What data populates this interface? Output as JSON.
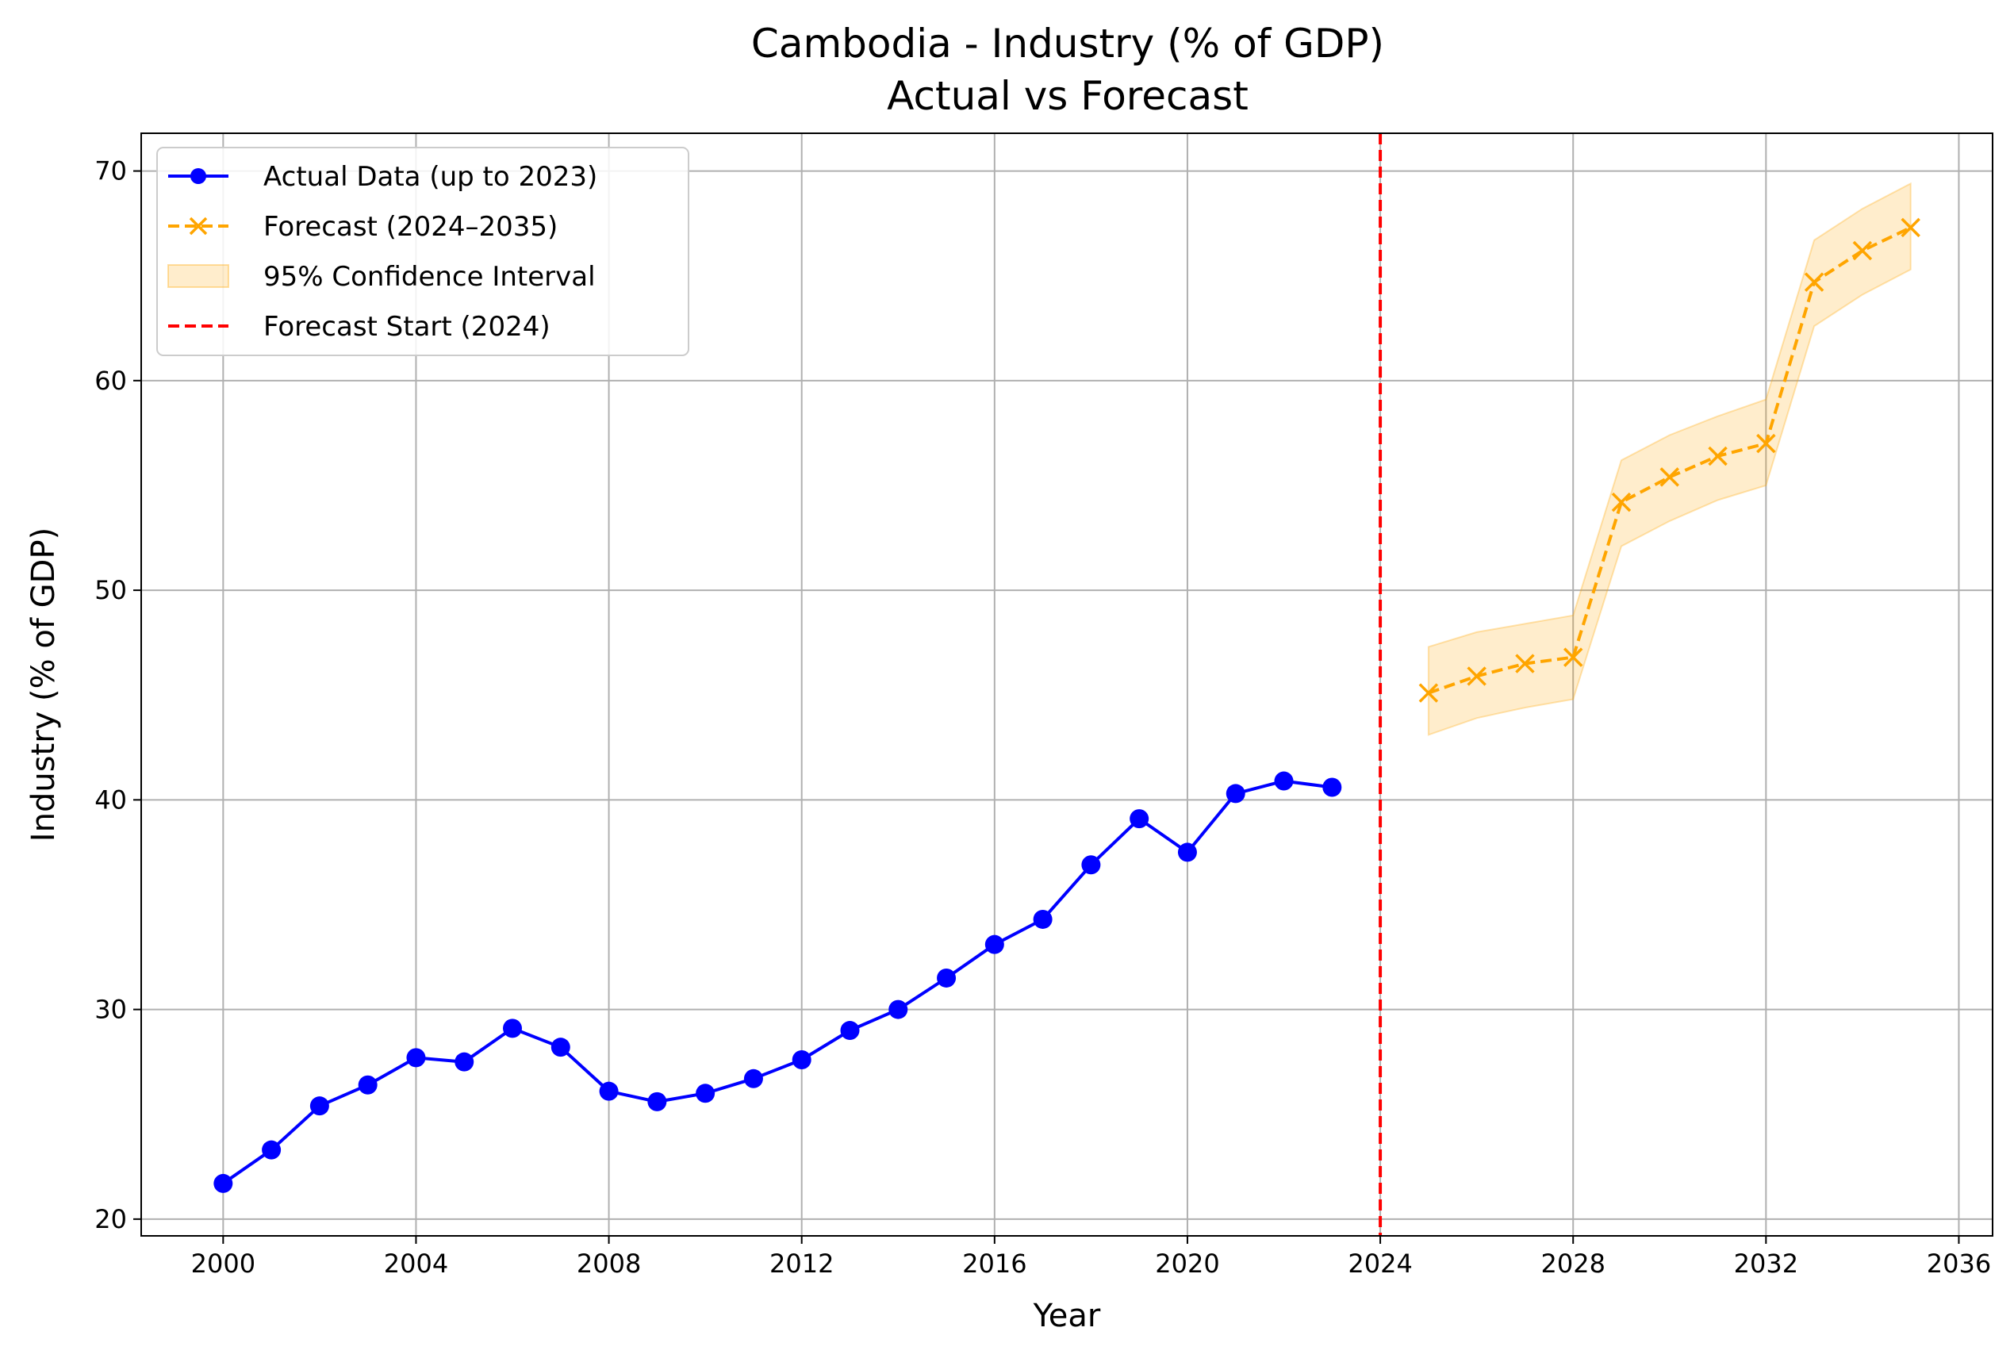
{
  "chart_data": {
    "type": "line",
    "title": "Cambodia - Industry (% of GDP)",
    "subtitle": "Actual vs Forecast",
    "xlabel": "Year",
    "ylabel": "Industry (% of GDP)",
    "xlim": [
      1998.3,
      2036.7
    ],
    "ylim": [
      19.2,
      71.8
    ],
    "xticks": [
      2000,
      2004,
      2008,
      2012,
      2016,
      2020,
      2024,
      2028,
      2032,
      2036
    ],
    "yticks": [
      20,
      30,
      40,
      50,
      60,
      70
    ],
    "grid": true,
    "legend_position": "upper-left",
    "forecast_start": 2024,
    "series": [
      {
        "name": "Actual Data (up to 2023)",
        "color": "#0000ff",
        "style": "solid",
        "marker": "circle",
        "x": [
          2000,
          2001,
          2002,
          2003,
          2004,
          2005,
          2006,
          2007,
          2008,
          2009,
          2010,
          2011,
          2012,
          2013,
          2014,
          2015,
          2016,
          2017,
          2018,
          2019,
          2020,
          2021,
          2022,
          2023
        ],
        "values": [
          21.7,
          23.3,
          25.4,
          26.4,
          27.7,
          27.5,
          29.1,
          28.2,
          26.1,
          25.6,
          26.0,
          26.7,
          27.6,
          29.0,
          30.0,
          31.5,
          33.1,
          34.3,
          36.9,
          39.1,
          37.5,
          40.3,
          40.9,
          40.6
        ]
      },
      {
        "name": "Forecast (2024–2035)",
        "color": "#ffa500",
        "style": "dashed",
        "marker": "x",
        "x": [
          2025,
          2026,
          2027,
          2028,
          2029,
          2030,
          2031,
          2032,
          2033,
          2034,
          2035
        ],
        "values": [
          45.1,
          45.9,
          46.5,
          46.8,
          54.2,
          55.4,
          56.4,
          57.0,
          64.7,
          66.2,
          67.3
        ],
        "ci_lower": [
          43.1,
          43.9,
          44.4,
          44.8,
          52.1,
          53.3,
          54.3,
          55.0,
          62.6,
          64.1,
          65.3
        ],
        "ci_upper": [
          47.3,
          48.0,
          48.4,
          48.8,
          56.2,
          57.4,
          58.3,
          59.1,
          66.7,
          68.2,
          69.4
        ]
      }
    ],
    "legend": [
      {
        "label": "Actual Data (up to 2023)",
        "kind": "line-marker",
        "color": "#0000ff"
      },
      {
        "label": "Forecast (2024–2035)",
        "kind": "dashed-x",
        "color": "#ffa500"
      },
      {
        "label": "95% Confidence Interval",
        "kind": "patch",
        "color": "#ffa500"
      },
      {
        "label": "Forecast Start (2024)",
        "kind": "dashed",
        "color": "#ff0000"
      }
    ],
    "colors": {
      "grid": "#b0b0b0",
      "ci_fill": "#ffa500",
      "forecast_line": "#ff0000"
    }
  }
}
